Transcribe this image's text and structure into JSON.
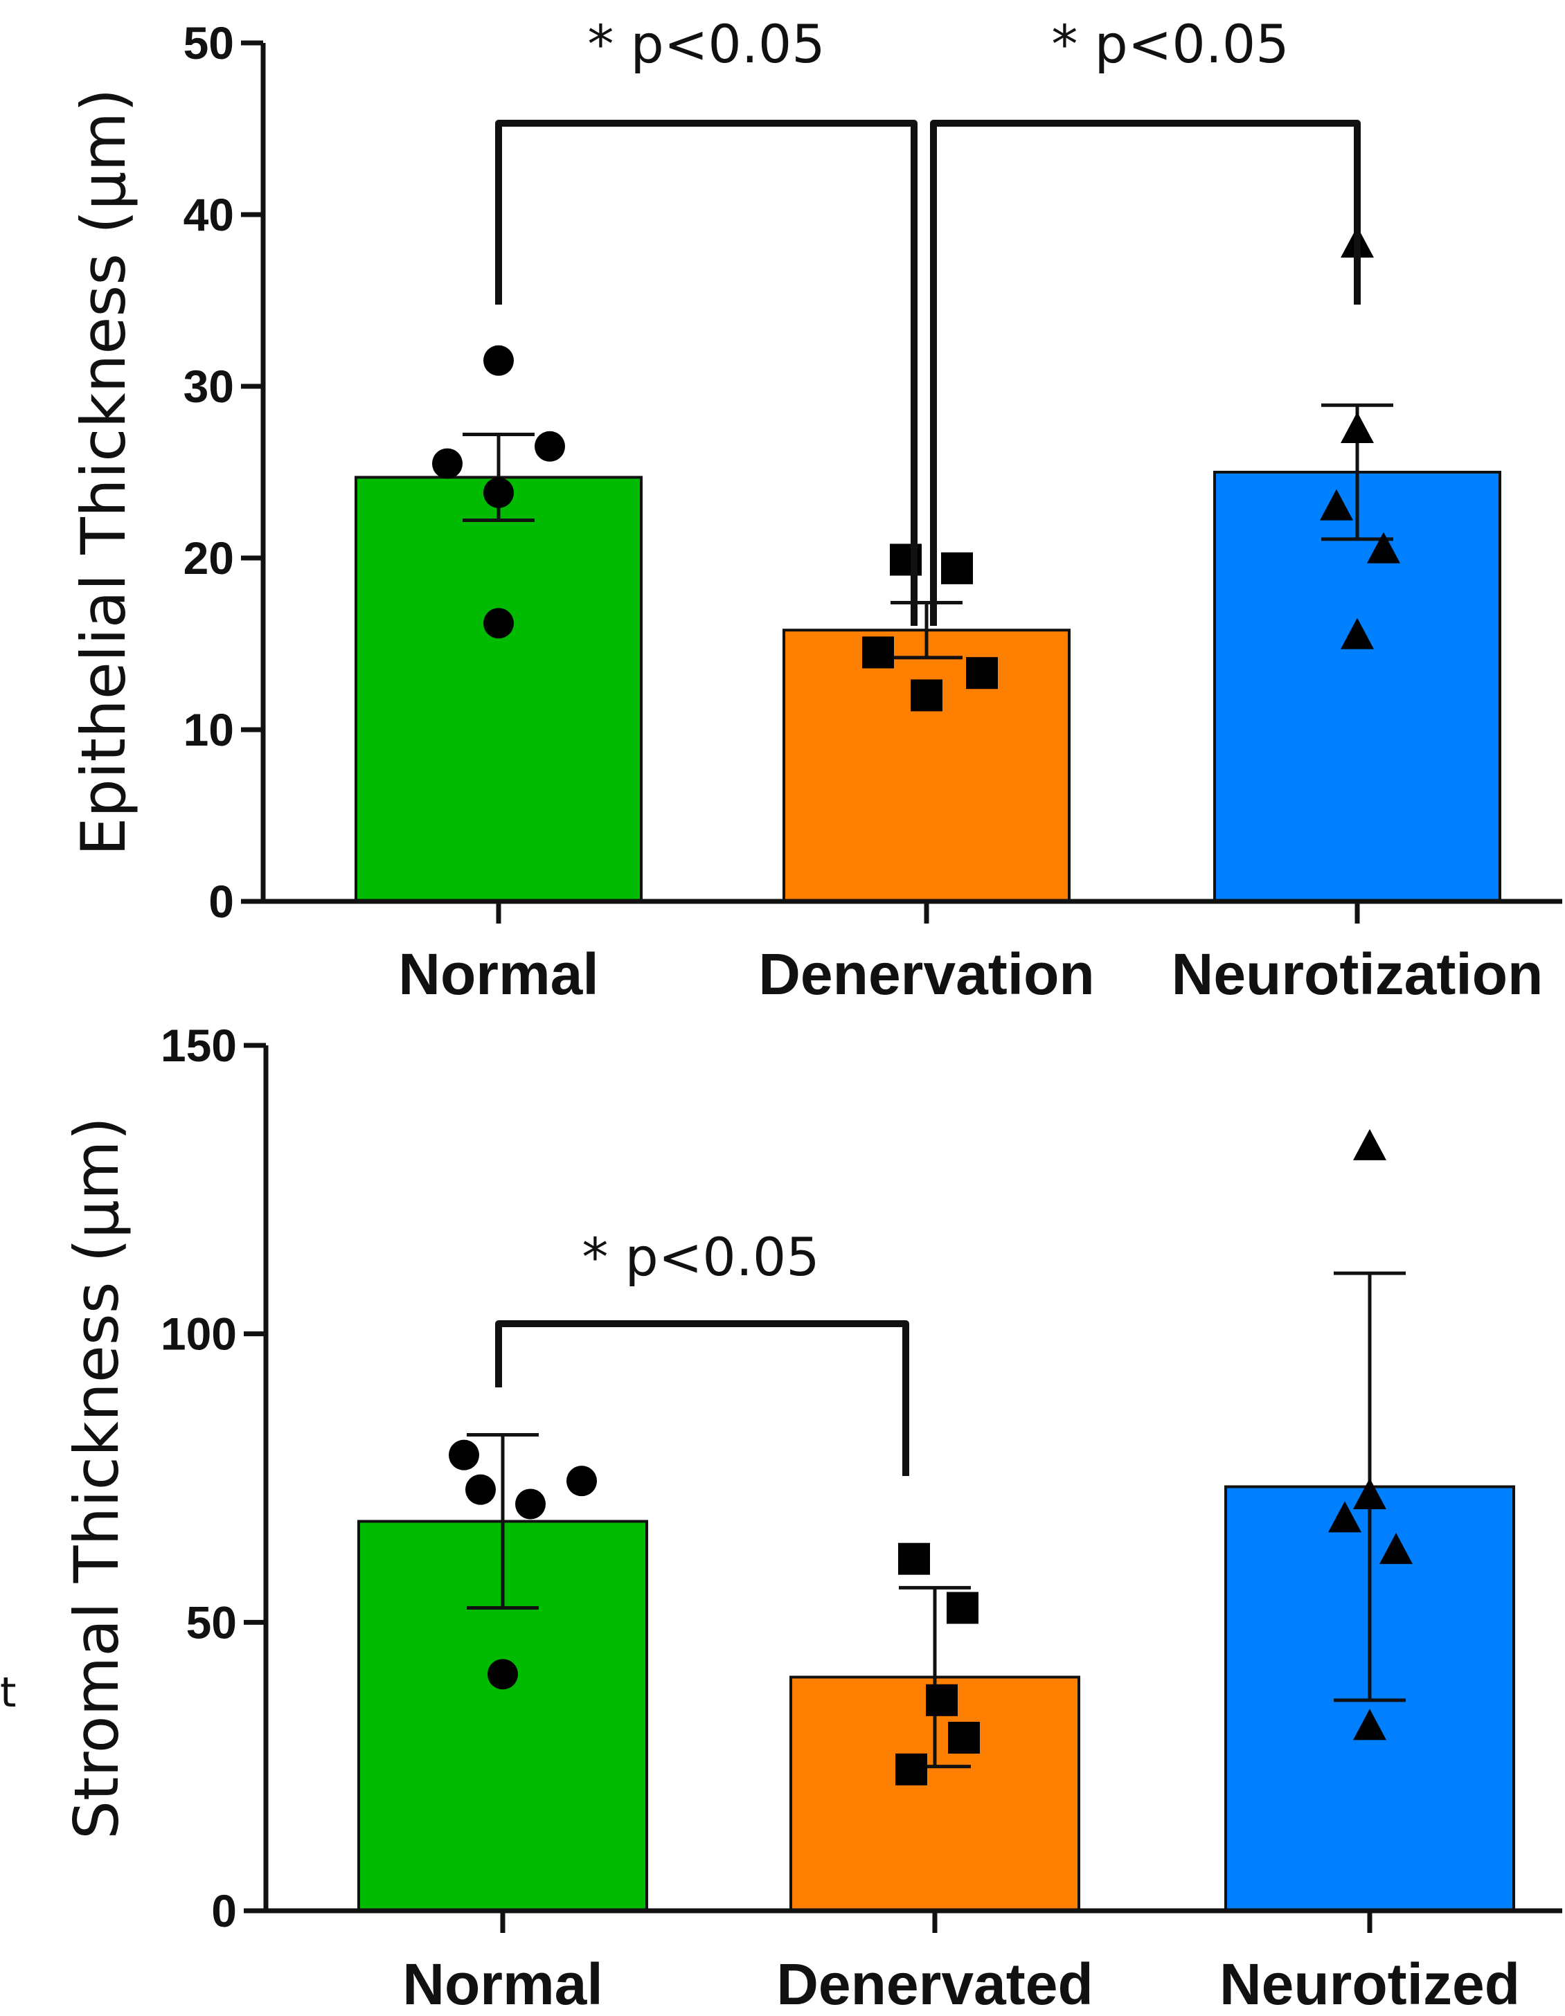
{
  "chart_data": [
    {
      "type": "bar",
      "title": "",
      "xlabel": "",
      "ylabel": "Epithelial Thickness (µm)",
      "ylim": [
        0,
        50
      ],
      "yticks": [
        0,
        10,
        20,
        30,
        40,
        50
      ],
      "grid": false,
      "categories": [
        "Normal",
        "Denervation",
        "Neurotization"
      ],
      "colors": [
        "#00bb00",
        "#ff8000",
        "#0080ff"
      ],
      "markers": [
        "circle",
        "square",
        "triangle"
      ],
      "means": [
        24.7,
        15.8,
        25.0
      ],
      "error": [
        2.5,
        1.6,
        3.9
      ],
      "points": [
        [
          31.5,
          25.5,
          26.5,
          23.8,
          16.2
        ],
        [
          19.9,
          19.4,
          14.5,
          12.0,
          13.3
        ],
        [
          38.3,
          27.5,
          23.0,
          20.5,
          15.5
        ]
      ],
      "annotations": [
        {
          "text": "* p<0.05",
          "from": 0,
          "to": 1
        },
        {
          "text": "* p<0.05",
          "from": 1,
          "to": 2
        }
      ]
    },
    {
      "type": "bar",
      "title": "",
      "xlabel": "",
      "ylabel": "Stromal Thickness (µm)",
      "ylim": [
        0,
        150
      ],
      "yticks": [
        0,
        50,
        100,
        150
      ],
      "grid": false,
      "categories": [
        "Normal",
        "Denervated",
        "Neurotized"
      ],
      "colors": [
        "#00bb00",
        "#ff8000",
        "#0080ff"
      ],
      "markers": [
        "circle",
        "square",
        "triangle"
      ],
      "means": [
        67.5,
        40.5,
        73.5
      ],
      "error": [
        15.0,
        15.5,
        37.0
      ],
      "points": [
        [
          79.0,
          73.0,
          70.5,
          74.5,
          41.0
        ],
        [
          61.0,
          52.5,
          36.5,
          30.0,
          24.5
        ],
        [
          132.5,
          72.0,
          68.0,
          62.5,
          32.0
        ]
      ],
      "annotations": [
        {
          "text": "* p<0.05",
          "from": 0,
          "to": 1
        }
      ]
    }
  ],
  "stray_text": "t"
}
